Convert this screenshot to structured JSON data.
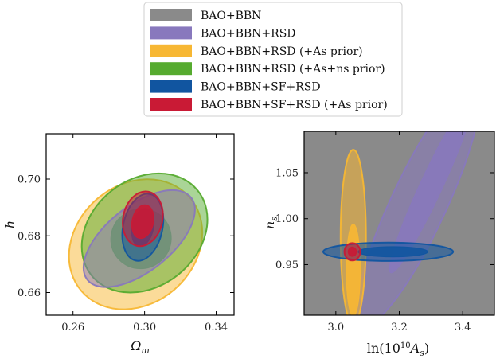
{
  "chart_data": [
    {
      "type": "contour",
      "panel": "left",
      "xlabel": "Ωm",
      "ylabel": "h",
      "xlim": [
        0.245,
        0.35
      ],
      "ylim": [
        0.652,
        0.716
      ],
      "xticks": [
        "0.26",
        "0.30",
        "0.34"
      ],
      "yticks": [
        "0.66",
        "0.68",
        "0.70"
      ],
      "grid": false,
      "series": [
        {
          "name": "BAO+BBN+RSD (+As prior)",
          "color": "#f7b733",
          "contours": [
            {
              "level": "2σ",
              "cx": 0.295,
              "cy": 0.677,
              "rx": 0.04,
              "ry": 0.02,
              "tilt": 0.55
            }
          ]
        },
        {
          "name": "BAO+BBN+RSD (+As+ns prior)",
          "color": "#56ab2f",
          "contours": [
            {
              "level": "2σ",
              "cx": 0.3,
              "cy": 0.681,
              "rx": 0.038,
              "ry": 0.018,
              "tilt": 0.5
            },
            {
              "level": "1σ",
              "cx": 0.298,
              "cy": 0.679,
              "rx": 0.017,
              "ry": 0.01,
              "tilt": 0.5
            }
          ]
        },
        {
          "name": "BAO+BBN+RSD",
          "color": "#8878bd",
          "contours": [
            {
              "level": "2σ",
              "cx": 0.297,
              "cy": 0.679,
              "rx": 0.037,
              "ry": 0.011,
              "tilt": 0.5
            }
          ]
        },
        {
          "name": "BAO+BBN+SF+RSD",
          "color": "#1155a0",
          "contours": [
            {
              "level": "2σ",
              "cx": 0.299,
              "cy": 0.683,
              "rx": 0.011,
              "ry": 0.016,
              "tilt": 0.05
            },
            {
              "level": "1σ",
              "cx": 0.299,
              "cy": 0.683,
              "rx": 0.006,
              "ry": 0.009,
              "tilt": 0.05
            }
          ]
        },
        {
          "name": "BAO+BBN+SF+RSD (+As prior)",
          "color": "#c91a35",
          "contours": [
            {
              "level": "2σ",
              "cx": 0.299,
              "cy": 0.686,
              "rx": 0.011,
              "ry": 0.013,
              "tilt": 0.05
            },
            {
              "level": "1σ",
              "cx": 0.299,
              "cy": 0.685,
              "rx": 0.006,
              "ry": 0.008,
              "tilt": 0.05
            }
          ]
        }
      ]
    },
    {
      "type": "contour",
      "panel": "right",
      "xlabel": "ln(10^10 As)",
      "ylabel": "ns",
      "xlim": [
        2.9,
        3.5
      ],
      "ylim": [
        0.895,
        1.095
      ],
      "xticks": [
        "3.0",
        "3.2",
        "3.4"
      ],
      "yticks": [
        "0.95",
        "1.00",
        "1.05"
      ],
      "grid": false,
      "series": [
        {
          "name": "BAO+BBN",
          "color": "#8a8a8a",
          "contours": [
            {
              "level": "2σ",
              "note": "fills entire plotted range"
            }
          ]
        },
        {
          "name": "BAO+BBN+RSD",
          "color": "#8878bd",
          "contours": [
            {
              "level": "2σ",
              "cx": 3.26,
              "cy": 1.015,
              "rx": 0.42,
              "ry": 0.03,
              "tilt": 65
            },
            {
              "level": "1σ",
              "cx": 3.3,
              "cy": 1.035,
              "rx": 0.3,
              "ry": 0.012,
              "tilt": 65
            }
          ]
        },
        {
          "name": "BAO+BBN+RSD (+As prior)",
          "color": "#f7b733",
          "contours": [
            {
              "level": "2σ",
              "cx": 3.055,
              "cy": 0.98,
              "rx": 0.04,
              "ry": 0.095
            },
            {
              "level": "1σ",
              "cx": 3.055,
              "cy": 0.944,
              "rx": 0.022,
              "ry": 0.05
            }
          ]
        },
        {
          "name": "BAO+BBN+SF+RSD",
          "color": "#1155a0",
          "contours": [
            {
              "level": "2σ",
              "cx": 3.165,
              "cy": 0.964,
              "rx": 0.205,
              "ry": 0.01
            },
            {
              "level": "1σ",
              "cx": 3.18,
              "cy": 0.964,
              "rx": 0.11,
              "ry": 0.0055
            }
          ]
        },
        {
          "name": "BAO+BBN+SF+RSD (+As prior)",
          "color": "#c91a35",
          "contours": [
            {
              "level": "2σ",
              "cx": 3.052,
              "cy": 0.964,
              "rx": 0.025,
              "ry": 0.0095
            },
            {
              "level": "1σ",
              "cx": 3.052,
              "cy": 0.964,
              "rx": 0.013,
              "ry": 0.005
            }
          ]
        }
      ]
    }
  ],
  "legend": {
    "placement": "top-center",
    "entries": [
      {
        "label": "BAO+BBN",
        "color": "#8a8a8a"
      },
      {
        "label": "BAO+BBN+RSD",
        "color": "#8878bd"
      },
      {
        "label": "BAO+BBN+RSD (+As prior)",
        "color": "#f7b733"
      },
      {
        "label": "BAO+BBN+RSD (+As+ns prior)",
        "color": "#56ab2f"
      },
      {
        "label": "BAO+BBN+SF+RSD",
        "color": "#1155a0"
      },
      {
        "label": "BAO+BBN+SF+RSD (+As prior)",
        "color": "#c91a35"
      }
    ]
  }
}
